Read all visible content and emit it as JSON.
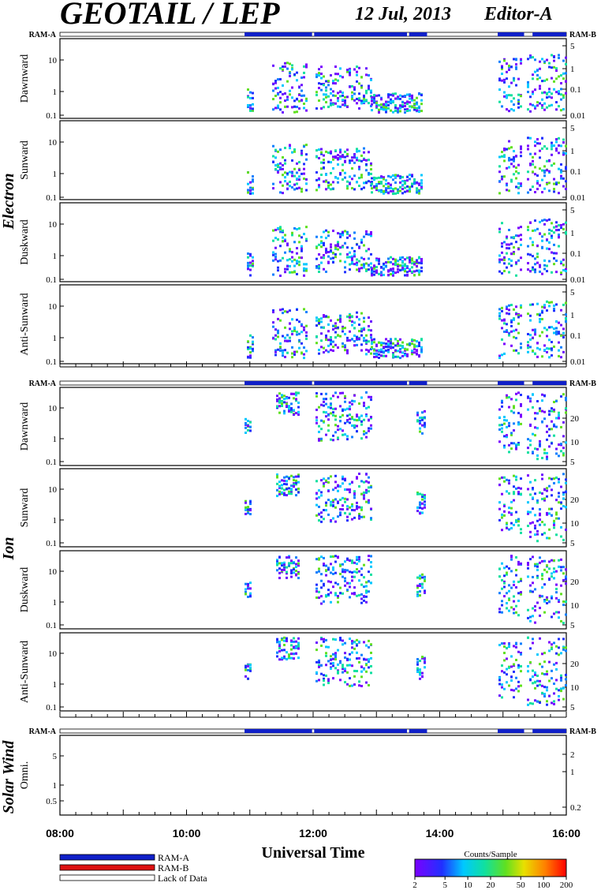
{
  "header": {
    "instrument": "GEOTAIL / LEP",
    "date": "12 Jul, 2013",
    "editor": "Editor-A"
  },
  "chart_data": {
    "type": "heatmap",
    "x_axis": {
      "label": "Universal Time",
      "range": [
        "08:00",
        "16:00"
      ],
      "tick_labels": [
        "08:00",
        "10:00",
        "12:00",
        "14:00",
        "16:00"
      ]
    },
    "ram_bar": {
      "left_label": "RAM-A",
      "right_label": "RAM-B",
      "segments": [
        {
          "start": "10:55",
          "end": "11:59",
          "mode": "RAM-A"
        },
        {
          "start": "12:01",
          "end": "13:29",
          "mode": "RAM-A"
        },
        {
          "start": "13:31",
          "end": "13:48",
          "mode": "RAM-A"
        },
        {
          "start": "14:55",
          "end": "15:20",
          "mode": "RAM-A"
        },
        {
          "start": "15:28",
          "end": "16:00",
          "mode": "RAM-A"
        }
      ]
    },
    "groups": [
      {
        "name": "Electron",
        "left_ticks": [
          "10",
          "1",
          "0.1"
        ],
        "right_ticks": [
          "5",
          "1",
          "0.1",
          "0.01"
        ],
        "panels": [
          {
            "label": "Dawnward"
          },
          {
            "label": "Sunward"
          },
          {
            "label": "Duskward"
          },
          {
            "label": "Anti-Sunward"
          }
        ]
      },
      {
        "name": "Ion",
        "left_ticks": [
          "10",
          "1",
          "0.1"
        ],
        "right_ticks": [
          "20",
          "10",
          "5"
        ],
        "panels": [
          {
            "label": "Dawnward"
          },
          {
            "label": "Sunward"
          },
          {
            "label": "Duskward"
          },
          {
            "label": "Anti-Sunward"
          }
        ]
      },
      {
        "name": "Solar Wind",
        "left_ticks": [
          "5",
          "1",
          "0.5"
        ],
        "right_ticks": [
          "2",
          "1",
          "0.2"
        ],
        "panels": [
          {
            "label": "Omni."
          }
        ]
      }
    ],
    "legend": {
      "items": [
        {
          "label": "RAM-A",
          "color": "#1020c8"
        },
        {
          "label": "RAM-B",
          "color": "#dd1111"
        },
        {
          "label": "Lack of Data",
          "color": "#ffffff"
        }
      ]
    },
    "colorbar": {
      "title": "Counts/Sample",
      "tick_labels": [
        "2",
        "5",
        "10",
        "20",
        "50",
        "100",
        "200"
      ],
      "colors": [
        "#7a00ff",
        "#2030ff",
        "#00c8ff",
        "#10e0a0",
        "#60e020",
        "#e8e000",
        "#ff8000",
        "#ff0000"
      ]
    }
  }
}
